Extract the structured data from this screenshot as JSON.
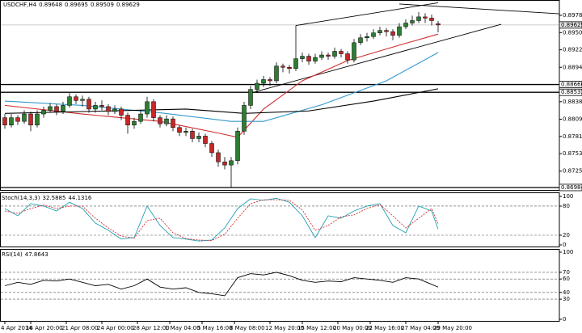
{
  "chart_data": [
    {
      "type": "candlestick",
      "symbol": "USDCHF,H4",
      "open": [
        0.8812,
        0.88,
        0.8812,
        0.8806,
        0.8818,
        0.88,
        0.8818,
        0.8824,
        0.883,
        0.8822,
        0.8832,
        0.8846,
        0.884,
        0.8842,
        0.8826,
        0.8832,
        0.883,
        0.8822,
        0.8826,
        0.8816,
        0.88,
        0.8806,
        0.8818,
        0.8838,
        0.8812,
        0.8802,
        0.881,
        0.8796,
        0.8788,
        0.879,
        0.8778,
        0.8782,
        0.877,
        0.8755,
        0.874,
        0.8735,
        0.8742,
        0.879,
        0.8832,
        0.8858,
        0.8868,
        0.8874,
        0.8872,
        0.8896,
        0.8894,
        0.8892,
        0.8908,
        0.8912,
        0.8904,
        0.891,
        0.8914,
        0.8912,
        0.892,
        0.8916,
        0.8906,
        0.8934,
        0.8942,
        0.8944,
        0.895,
        0.8954,
        0.8952,
        0.8946,
        0.896,
        0.8966,
        0.897,
        0.8976,
        0.8974,
        0.89648
      ],
      "high": [
        0.8818,
        0.8818,
        0.8816,
        0.8824,
        0.8822,
        0.8824,
        0.883,
        0.8836,
        0.8834,
        0.8838,
        0.8852,
        0.885,
        0.8848,
        0.8846,
        0.8838,
        0.884,
        0.8834,
        0.8832,
        0.883,
        0.882,
        0.8812,
        0.8824,
        0.8846,
        0.8842,
        0.8816,
        0.8816,
        0.8814,
        0.88,
        0.8796,
        0.8794,
        0.8788,
        0.8786,
        0.8774,
        0.876,
        0.8748,
        0.8748,
        0.8796,
        0.8838,
        0.8864,
        0.8874,
        0.888,
        0.8878,
        0.8902,
        0.89,
        0.8898,
        0.8962,
        0.8918,
        0.8916,
        0.8916,
        0.892,
        0.8918,
        0.8926,
        0.8924,
        0.892,
        0.894,
        0.8948,
        0.895,
        0.8956,
        0.896,
        0.8958,
        0.8956,
        0.8966,
        0.8972,
        0.8978,
        0.8984,
        0.8982,
        0.898,
        0.89695
      ],
      "low": [
        0.8794,
        0.8796,
        0.88,
        0.8802,
        0.879,
        0.8796,
        0.8812,
        0.882,
        0.8816,
        0.8818,
        0.8828,
        0.8834,
        0.883,
        0.882,
        0.882,
        0.8824,
        0.8816,
        0.8818,
        0.8808,
        0.8786,
        0.8794,
        0.8802,
        0.8812,
        0.8806,
        0.8796,
        0.8798,
        0.879,
        0.8782,
        0.8782,
        0.8772,
        0.8772,
        0.8764,
        0.8748,
        0.8732,
        0.8728,
        0.8698,
        0.8736,
        0.8784,
        0.8826,
        0.8852,
        0.8862,
        0.8864,
        0.8868,
        0.8886,
        0.8884,
        0.8888,
        0.8902,
        0.8898,
        0.89,
        0.8906,
        0.8906,
        0.8908,
        0.891,
        0.89,
        0.8902,
        0.893,
        0.8936,
        0.894,
        0.8946,
        0.8944,
        0.8938,
        0.8942,
        0.8956,
        0.8962,
        0.8966,
        0.8966,
        0.8962,
        0.89509
      ],
      "close": [
        0.88,
        0.8812,
        0.8806,
        0.8818,
        0.88,
        0.8818,
        0.8824,
        0.883,
        0.8822,
        0.8832,
        0.8846,
        0.884,
        0.8842,
        0.8826,
        0.8832,
        0.883,
        0.8822,
        0.8826,
        0.8816,
        0.88,
        0.8806,
        0.8818,
        0.8838,
        0.8812,
        0.8802,
        0.881,
        0.8796,
        0.8788,
        0.879,
        0.8778,
        0.8782,
        0.877,
        0.8755,
        0.874,
        0.8735,
        0.8742,
        0.879,
        0.8832,
        0.8858,
        0.8868,
        0.8874,
        0.8872,
        0.8896,
        0.8894,
        0.8892,
        0.8908,
        0.8912,
        0.8904,
        0.891,
        0.8914,
        0.8912,
        0.892,
        0.8916,
        0.8906,
        0.8934,
        0.8942,
        0.8944,
        0.895,
        0.8954,
        0.8952,
        0.8946,
        0.896,
        0.8966,
        0.897,
        0.8976,
        0.8974,
        0.897,
        0.89629
      ],
      "up_color": "#2e7d32",
      "down_color": "#c62828",
      "series": [
        {
          "color": "#d03030",
          "x": [
            0,
            12,
            24,
            33,
            36,
            40,
            46,
            53,
            61,
            67
          ],
          "values": [
            0.8832,
            0.8818,
            0.8806,
            0.8787,
            0.878,
            0.8826,
            0.8872,
            0.8905,
            0.893,
            0.8948
          ]
        },
        {
          "color": "#3399cc",
          "x": [
            0,
            12,
            24,
            35,
            40,
            49,
            59,
            67
          ],
          "values": [
            0.8839,
            0.8832,
            0.882,
            0.8806,
            0.8806,
            0.8833,
            0.8872,
            0.8918
          ]
        },
        {
          "color": "#000000",
          "x": [
            0,
            12,
            28,
            37,
            47,
            57,
            67
          ],
          "values": [
            0.8819,
            0.8822,
            0.8826,
            0.8819,
            0.8823,
            0.8839,
            0.8859
          ]
        }
      ],
      "trendlines": [
        {
          "x": [
            45,
            67
          ],
          "values": [
            0.8962,
            0.8999
          ]
        },
        {
          "x": [
            38,
            76.75
          ],
          "values": [
            0.8852,
            0.8964
          ]
        },
        {
          "x": [
            61,
            85.75
          ],
          "values": [
            0.8997,
            0.8981
          ]
        }
      ],
      "levels": [
        {
          "value": 0.8866,
          "label": "0.88660"
        },
        {
          "value": 0.88533,
          "label": "0.88533"
        },
        {
          "value": 0.86984,
          "label": "0.86984"
        }
      ],
      "xlim": [
        -0.75,
        85.75
      ],
      "ylim": [
        0.86931,
        0.90035
      ],
      "yticks": [
        0.89785,
        0.89505,
        0.89225,
        {
          "value": 0.8894,
          "label": "0.88940"
        },
        {
          "value": 0.8838,
          "label": "0.88380"
        },
        0.88095,
        0.87815,
        0.87535,
        {
          "value": 0.8725,
          "label": "0.87250"
        }
      ],
      "xticks": [
        {
          "value": 0,
          "label": "4 Apr 2014"
        },
        {
          "value": 4,
          "label": "16 Apr 20:00"
        },
        {
          "value": 9.5,
          "label": "21 Apr 08:00"
        },
        {
          "value": 15,
          "label": "24 Apr 00:00"
        },
        {
          "value": 20.5,
          "label": "28 Apr 12:00"
        },
        {
          "value": 25.5,
          "label": "1 May 04:00"
        },
        {
          "value": 30.5,
          "label": "5 May 16:00"
        },
        {
          "value": 35.5,
          "label": "8 May 08:00"
        },
        {
          "value": 41,
          "label": "12 May 20:00"
        },
        {
          "value": 46,
          "label": "15 May 12:00"
        },
        {
          "value": 51.5,
          "label": "20 May 00:00"
        },
        {
          "value": 56.5,
          "label": "22 May 16:00"
        },
        {
          "value": 62,
          "label": "27 May 04:00"
        },
        {
          "value": 67,
          "label": "29 May 20:00"
        }
      ]
    },
    {
      "type": "line",
      "title": "Stoch(14,3,3)",
      "x": [
        0,
        2,
        4,
        6,
        8,
        10,
        12,
        14,
        16,
        18,
        20,
        22,
        24,
        26,
        28,
        30,
        32,
        34,
        36,
        38,
        40,
        42,
        44,
        46,
        48,
        50,
        52,
        54,
        56,
        58,
        60,
        62,
        64,
        66,
        67
      ],
      "series": [
        {
          "color": "#1fa0b4",
          "dash": false,
          "values": [
            75,
            60,
            85,
            80,
            70,
            88,
            75,
            45,
            30,
            12,
            15,
            80,
            40,
            15,
            12,
            8,
            10,
            35,
            75,
            95,
            92,
            96,
            88,
            60,
            15,
            60,
            55,
            70,
            80,
            85,
            40,
            25,
            80,
            70,
            32.5885
          ]
        },
        {
          "color": "#d03030",
          "dash": true,
          "values": [
            70,
            65,
            75,
            82,
            75,
            80,
            80,
            55,
            35,
            18,
            14,
            50,
            55,
            25,
            13,
            10,
            9,
            22,
            55,
            85,
            93,
            93,
            92,
            72,
            30,
            40,
            58,
            62,
            75,
            83,
            60,
            35,
            55,
            75,
            44.1316
          ]
        }
      ],
      "ylim": [
        -5,
        108.3
      ],
      "yticks": [
        100,
        80,
        20,
        0
      ],
      "grid": true
    },
    {
      "type": "line",
      "title": "RSI(14)",
      "x": [
        0,
        2,
        4,
        6,
        8,
        10,
        12,
        14,
        16,
        18,
        20,
        22,
        24,
        26,
        28,
        30,
        32,
        34,
        36,
        38,
        40,
        42,
        44,
        46,
        48,
        50,
        52,
        54,
        56,
        58,
        60,
        62,
        64,
        66,
        67
      ],
      "series": [
        {
          "color": "#000000",
          "dash": false,
          "values": [
            50,
            55,
            52,
            58,
            57,
            60,
            55,
            50,
            52,
            45,
            50,
            60,
            48,
            45,
            47,
            40,
            38,
            35,
            62,
            68,
            66,
            70,
            65,
            58,
            55,
            57,
            56,
            62,
            60,
            58,
            55,
            62,
            60,
            52,
            47.8643
          ]
        }
      ],
      "ylim": [
        -3.6,
        104.8
      ],
      "yticks": [
        100,
        70,
        60,
        40,
        30,
        0
      ],
      "grid": true
    }
  ]
}
